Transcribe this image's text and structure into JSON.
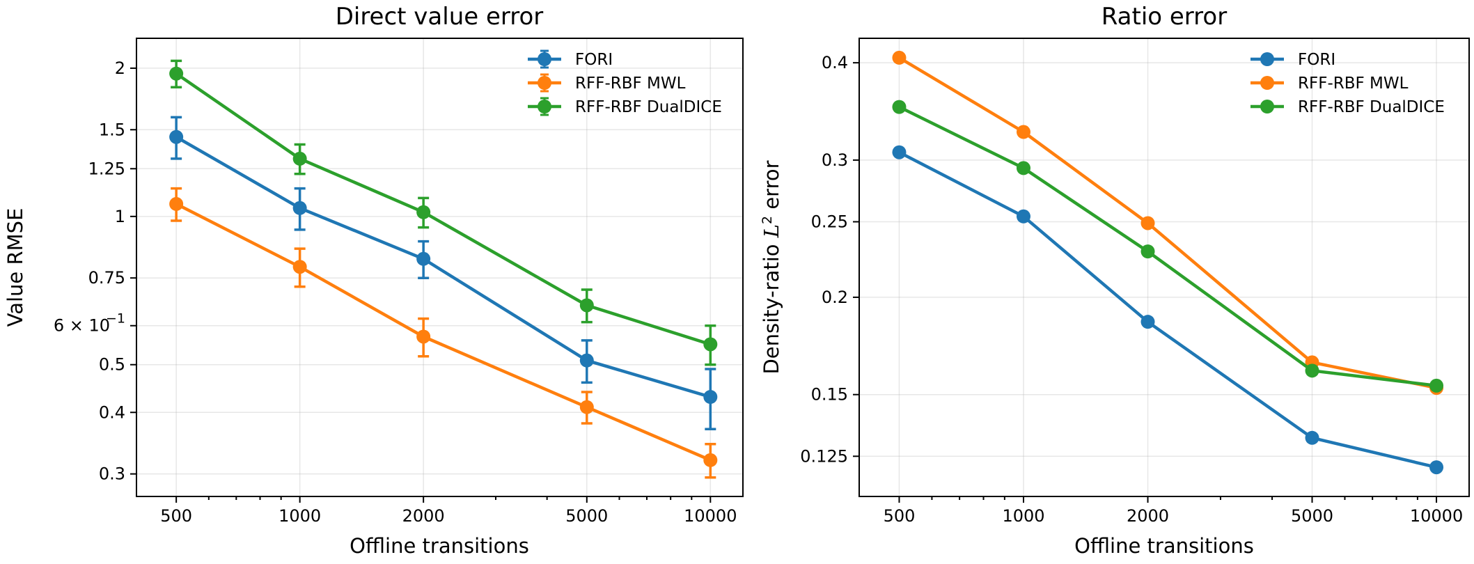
{
  "colors": {
    "FORI": "#1f77b4",
    "RFF-RBF MWL": "#ff7f0e",
    "RFF-RBF DualDICE": "#2ca02c"
  },
  "chart_data": [
    {
      "type": "line",
      "title": "Direct value error",
      "xlabel": "Offline transitions",
      "ylabel": "Value RMSE",
      "xscale": "log",
      "yscale": "log",
      "xlim": [
        400,
        12000
      ],
      "ylim": [
        0.27,
        2.3
      ],
      "grid": true,
      "legend_position": "top-right",
      "x_ticks": [
        500,
        1000,
        2000,
        5000,
        10000
      ],
      "x_tick_labels": [
        "500",
        "1000",
        "2000",
        "5000",
        "10000"
      ],
      "y_ticks": [
        0.3,
        0.4,
        0.5,
        0.6,
        0.75,
        1,
        1.25,
        1.5,
        2
      ],
      "y_tick_labels": [
        "0.3",
        "0.4",
        "0.5",
        "6 × 10",
        "0.75",
        "1",
        "1.25",
        "1.5",
        "2"
      ],
      "y_tick_exponents": [
        "",
        "",
        "",
        "−1",
        "",
        "",
        "",
        "",
        ""
      ],
      "x": [
        500,
        1000,
        2000,
        5000,
        10000
      ],
      "series": [
        {
          "name": "FORI",
          "values": [
            1.45,
            1.04,
            0.82,
            0.51,
            0.43
          ],
          "errors": [
            0.14,
            0.1,
            0.07,
            0.05,
            0.06
          ]
        },
        {
          "name": "RFF-RBF MWL",
          "values": [
            1.06,
            0.79,
            0.57,
            0.41,
            0.32
          ],
          "errors": [
            0.08,
            0.07,
            0.05,
            0.03,
            0.025
          ]
        },
        {
          "name": "RFF-RBF DualDICE",
          "values": [
            1.95,
            1.31,
            1.02,
            0.66,
            0.55
          ],
          "errors": [
            0.12,
            0.09,
            0.07,
            0.05,
            0.05
          ]
        }
      ]
    },
    {
      "type": "line",
      "title": "Ratio error",
      "xlabel": "Offline transitions",
      "ylabel": "Density-ratio ",
      "ylabel_math": "L",
      "ylabel_sup": "2",
      "ylabel_tail": " error",
      "xscale": "log",
      "yscale": "log",
      "xlim": [
        400,
        12000
      ],
      "ylim": [
        0.111,
        0.43
      ],
      "grid": true,
      "legend_position": "top-right",
      "x_ticks": [
        500,
        1000,
        2000,
        5000,
        10000
      ],
      "x_tick_labels": [
        "500",
        "1000",
        "2000",
        "5000",
        "10000"
      ],
      "y_ticks": [
        0.125,
        0.15,
        0.2,
        0.25,
        0.3,
        0.4
      ],
      "y_tick_labels": [
        "0.125",
        "0.15",
        "0.2",
        "0.25",
        "0.3",
        "0.4"
      ],
      "x": [
        500,
        1000,
        2000,
        5000,
        10000
      ],
      "series": [
        {
          "name": "FORI",
          "values": [
            0.307,
            0.254,
            0.186,
            0.132,
            0.121
          ]
        },
        {
          "name": "RFF-RBF MWL",
          "values": [
            0.406,
            0.326,
            0.249,
            0.165,
            0.153
          ]
        },
        {
          "name": "RFF-RBF DualDICE",
          "values": [
            0.351,
            0.293,
            0.229,
            0.161,
            0.154
          ]
        }
      ]
    }
  ]
}
